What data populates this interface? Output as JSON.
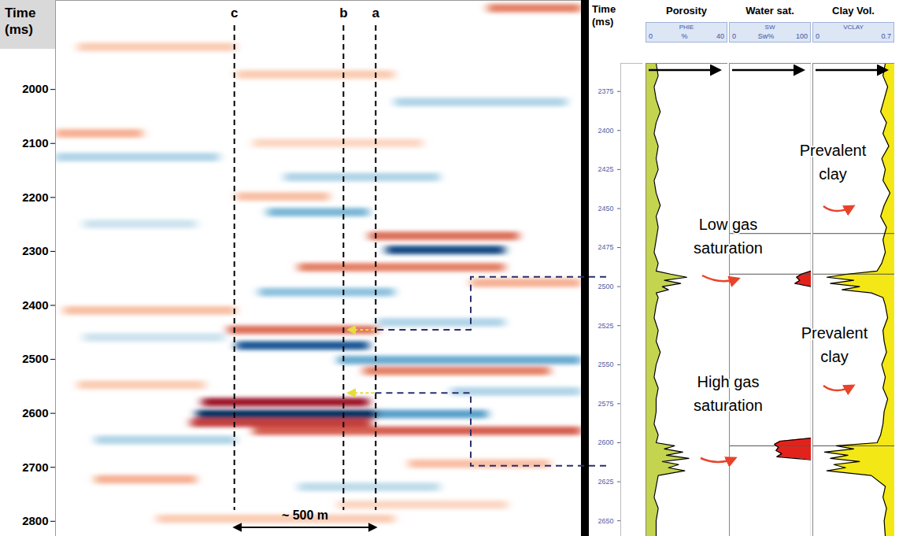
{
  "chart_data": [
    {
      "type": "seismic",
      "y_label": "Time (ms)",
      "ylim": [
        1835,
        2828
      ],
      "yticks": [
        2000,
        2100,
        2200,
        2300,
        2400,
        2500,
        2600,
        2700,
        2800
      ],
      "xlim": [
        0,
        1860
      ],
      "tick_labels": "y",
      "traces": [
        {
          "name": "c",
          "x": 634
        },
        {
          "name": "b",
          "x": 1020
        },
        {
          "name": "a",
          "x": 1134
        }
      ],
      "scale_bar": {
        "from": 634,
        "to": 1134,
        "label": "~ 500 m"
      },
      "amplitude_range": [
        -1,
        1
      ],
      "events": {
        "t": [
          2602,
          2602,
          2580,
          2633,
          2475,
          2446,
          2502,
          2522,
          2298,
          2272,
          2330,
          2228,
          2199,
          2376,
          2410,
          1850,
          2082,
          2126,
          2024,
          1973,
          2650,
          2723,
          2737,
          2694,
          2163,
          1922,
          2796,
          2548,
          2359,
          2432,
          2100,
          2250,
          2560,
          2770,
          2460,
          2618
        ],
        "x_start": [
          500,
          1140,
          520,
          700,
          640,
          610,
          1000,
          1090,
          1170,
          1110,
          860,
          750,
          640,
          720,
          30,
          1530,
          0,
          0,
          1200,
          640,
          140,
          140,
          860,
          1250,
          810,
          80,
          360,
          80,
          1470,
          1140,
          700,
          100,
          1400,
          1000,
          100,
          480
        ],
        "x_end": [
          1140,
          1530,
          1110,
          1860,
          1110,
          1140,
          1860,
          1750,
          1590,
          1640,
          1590,
          1110,
          970,
          1200,
          640,
          1860,
          310,
          580,
          1810,
          1200,
          640,
          500,
          1360,
          1750,
          1360,
          640,
          1200,
          530,
          1860,
          1590,
          1300,
          500,
          1860,
          1600,
          600,
          1120
        ],
        "amplitude": [
          -1,
          -0.55,
          0.85,
          0.6,
          -0.85,
          0.55,
          -0.5,
          0.5,
          -0.9,
          0.55,
          0.5,
          -0.45,
          0.3,
          -0.4,
          0.3,
          0.5,
          0.35,
          -0.3,
          -0.3,
          0.25,
          -0.3,
          0.35,
          -0.25,
          0.3,
          -0.3,
          0.25,
          0.25,
          0.25,
          0.35,
          -0.3,
          0.2,
          -0.2,
          -0.3,
          0.2,
          -0.2,
          0.7
        ]
      },
      "ties": {
        "seismic_time": [
          2446,
          2563
        ],
        "log_time": [
          2494,
          2615
        ]
      }
    },
    {
      "type": "well_log",
      "y_label": "Time (ms)",
      "ylim": [
        2357,
        2660
      ],
      "yticks": [
        2375,
        2400,
        2425,
        2450,
        2475,
        2500,
        2525,
        2550,
        2575,
        2600,
        2625,
        2650
      ],
      "zone_tops": [
        2466,
        2492,
        2602
      ],
      "tracks": [
        {
          "title": "Porosity",
          "name": "PHIE",
          "unit": "%",
          "xlim": [
            0,
            40
          ],
          "xticks": [
            0,
            40
          ],
          "color": "#c5d44e",
          "t": [
            2357,
            2365,
            2372,
            2380,
            2388,
            2395,
            2402,
            2410,
            2418,
            2425,
            2432,
            2440,
            2448,
            2455,
            2462,
            2470,
            2478,
            2485,
            2490,
            2492,
            2494,
            2496,
            2498,
            2500,
            2502,
            2504,
            2507,
            2512,
            2520,
            2528,
            2535,
            2542,
            2550,
            2558,
            2565,
            2572,
            2580,
            2588,
            2595,
            2600,
            2602,
            2604,
            2606,
            2608,
            2610,
            2612,
            2614,
            2616,
            2618,
            2621,
            2628,
            2635,
            2642,
            2650,
            2660
          ],
          "values": [
            5,
            6,
            4,
            5,
            7,
            5,
            4,
            6,
            5,
            6,
            4,
            5,
            7,
            5,
            6,
            5,
            4,
            6,
            5,
            12,
            20,
            9,
            17,
            8,
            11,
            5,
            6,
            5,
            4,
            6,
            5,
            7,
            5,
            4,
            6,
            5,
            5,
            4,
            6,
            5,
            14,
            9,
            18,
            10,
            21,
            8,
            16,
            11,
            19,
            6,
            5,
            4,
            6,
            5,
            5
          ]
        },
        {
          "title": "Water sat.",
          "name": "SW",
          "unit": "Sw%",
          "xlim": [
            0,
            100
          ],
          "xticks": [
            0,
            100
          ],
          "color": "#e3231b",
          "t": [
            2357,
            2490,
            2492,
            2494,
            2496,
            2498,
            2500,
            2597,
            2599,
            2601,
            2603,
            2605,
            2607,
            2609,
            2611,
            2660
          ],
          "values": [
            100,
            100,
            88,
            82,
            86,
            80,
            100,
            100,
            62,
            55,
            60,
            57,
            64,
            58,
            100,
            100
          ]
        },
        {
          "title": "Clay Vol.",
          "name": "VCLAY",
          "xlim": [
            0,
            0.7
          ],
          "xticks": [
            0,
            0.7
          ],
          "color": "#f3e816",
          "t": [
            2357,
            2365,
            2372,
            2380,
            2388,
            2395,
            2402,
            2410,
            2418,
            2425,
            2432,
            2440,
            2448,
            2455,
            2462,
            2470,
            2478,
            2485,
            2490,
            2492,
            2494,
            2496,
            2498,
            2500,
            2502,
            2504,
            2507,
            2512,
            2520,
            2528,
            2535,
            2542,
            2550,
            2558,
            2565,
            2572,
            2580,
            2588,
            2595,
            2600,
            2602,
            2604,
            2606,
            2608,
            2610,
            2612,
            2614,
            2616,
            2618,
            2621,
            2628,
            2635,
            2642,
            2650,
            2660
          ],
          "values": [
            0.62,
            0.6,
            0.64,
            0.61,
            0.58,
            0.63,
            0.6,
            0.65,
            0.59,
            0.62,
            0.6,
            0.66,
            0.61,
            0.58,
            0.63,
            0.6,
            0.62,
            0.59,
            0.55,
            0.3,
            0.12,
            0.35,
            0.15,
            0.4,
            0.25,
            0.5,
            0.6,
            0.62,
            0.64,
            0.6,
            0.61,
            0.63,
            0.59,
            0.62,
            0.6,
            0.64,
            0.61,
            0.6,
            0.58,
            0.55,
            0.2,
            0.35,
            0.1,
            0.3,
            0.15,
            0.4,
            0.18,
            0.28,
            0.12,
            0.5,
            0.62,
            0.6,
            0.63,
            0.61,
            0.62
          ]
        }
      ],
      "annotations": [
        "Prevalent clay",
        "Low gas saturation",
        "Prevalent clay",
        "High gas saturation"
      ]
    }
  ]
}
